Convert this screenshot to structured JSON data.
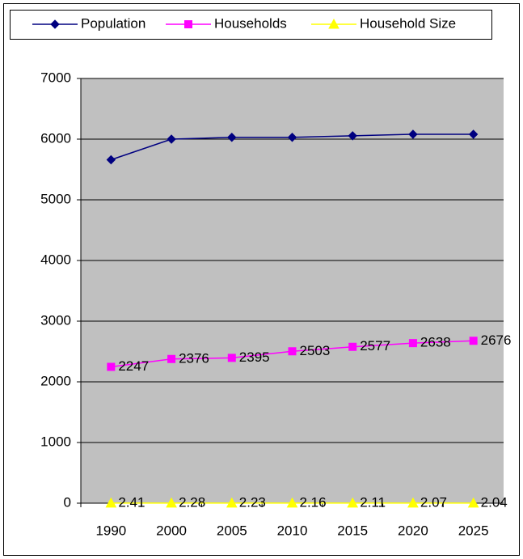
{
  "chart_data": {
    "type": "line",
    "categories": [
      "1990",
      "2000",
      "2005",
      "2010",
      "2015",
      "2020",
      "2025"
    ],
    "series": [
      {
        "name": "Population",
        "color": "#000080",
        "marker": "diamond",
        "values": [
          5660,
          6000,
          6030,
          6030,
          6055,
          6080,
          6080
        ]
      },
      {
        "name": "Households",
        "color": "#ff00ff",
        "marker": "square",
        "values": [
          2247,
          2376,
          2395,
          2503,
          2577,
          2638,
          2676
        ],
        "data_labels": true
      },
      {
        "name": "Household Size",
        "color": "#ffff00",
        "marker": "triangle",
        "values": [
          2.41,
          2.28,
          2.23,
          2.16,
          2.11,
          2.07,
          2.04
        ],
        "data_labels": true
      }
    ],
    "ylim": [
      0,
      7000
    ],
    "yticks": [
      0,
      1000,
      2000,
      3000,
      4000,
      5000,
      6000,
      7000
    ],
    "grid": true,
    "legend": "top"
  }
}
